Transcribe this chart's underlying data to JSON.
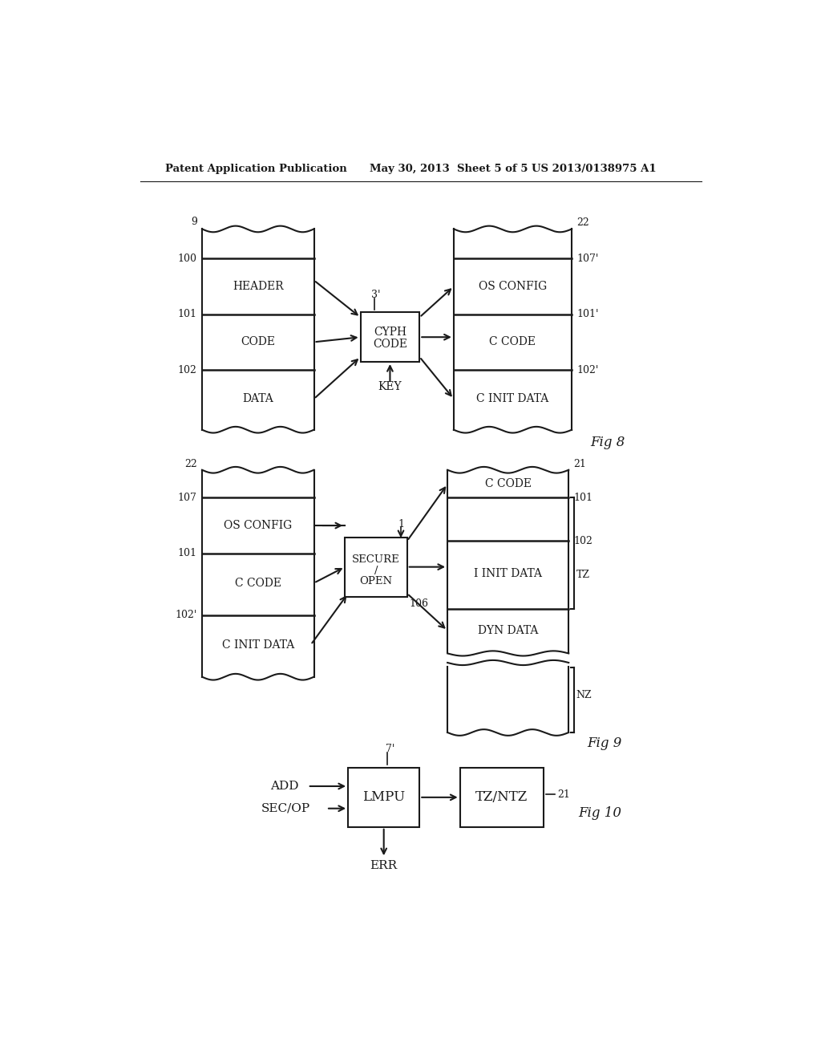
{
  "bg_color": "#ffffff",
  "header_text_left": "Patent Application Publication",
  "header_text_mid": "May 30, 2013  Sheet 5 of 5",
  "header_text_right": "US 2013/0138975 A1",
  "fig8_label": "Fig 8",
  "fig9_label": "Fig 9",
  "fig10_label": "Fig 10",
  "text_color": "#1a1a1a",
  "line_color": "#1a1a1a"
}
